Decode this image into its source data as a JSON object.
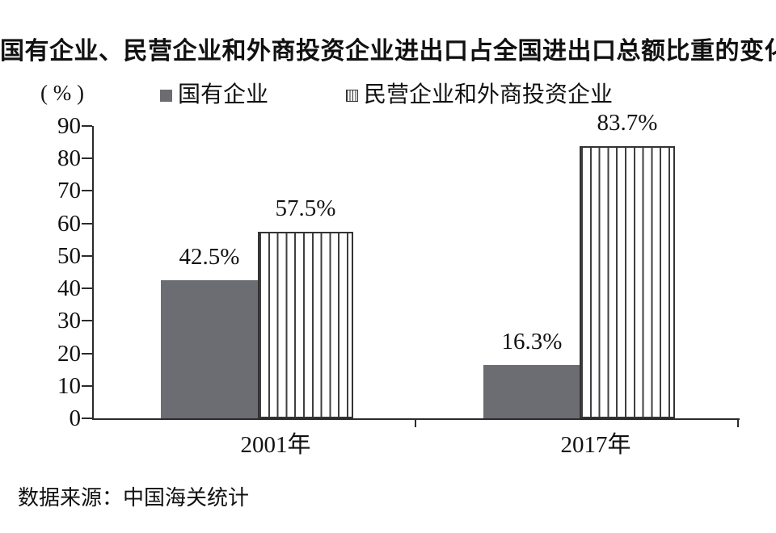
{
  "title": "国有企业、民营企业和外商投资企业进出口占全国进出口总额比重的变化",
  "y_axis_unit": "( % )",
  "legend": {
    "items": [
      {
        "label": "国有企业",
        "swatch": "solid-gray-square"
      },
      {
        "label": "民营企业和外商投资企业",
        "swatch": "vertical-striped-square"
      }
    ]
  },
  "source": "数据来源：中国海关统计",
  "colors": {
    "solid_bar": "#6b6d72",
    "stripe_line": "#3f3f3f",
    "bar_border": "#333333",
    "axis": "#2b2b2b",
    "text": "#111111"
  },
  "chart_data": {
    "type": "bar",
    "title": "国有企业、民营企业和外商投资企业进出口占全国进出口总额比重的变化",
    "categories": [
      "2001年",
      "2017年"
    ],
    "series": [
      {
        "name": "国有企业",
        "pattern": "solid",
        "values": [
          42.5,
          16.3
        ],
        "labels": [
          "42.5%",
          "16.3%"
        ]
      },
      {
        "name": "民营企业和外商投资企业",
        "pattern": "vertical-stripes",
        "values": [
          57.5,
          83.7
        ],
        "labels": [
          "57.5%",
          "83.7%"
        ]
      }
    ],
    "ylabel": "( % )",
    "ylim": [
      0,
      90
    ],
    "yticks": [
      0,
      10,
      20,
      30,
      40,
      50,
      60,
      70,
      80,
      90
    ],
    "grid": false,
    "legend_position": "top",
    "source": "数据来源：中国海关统计"
  }
}
